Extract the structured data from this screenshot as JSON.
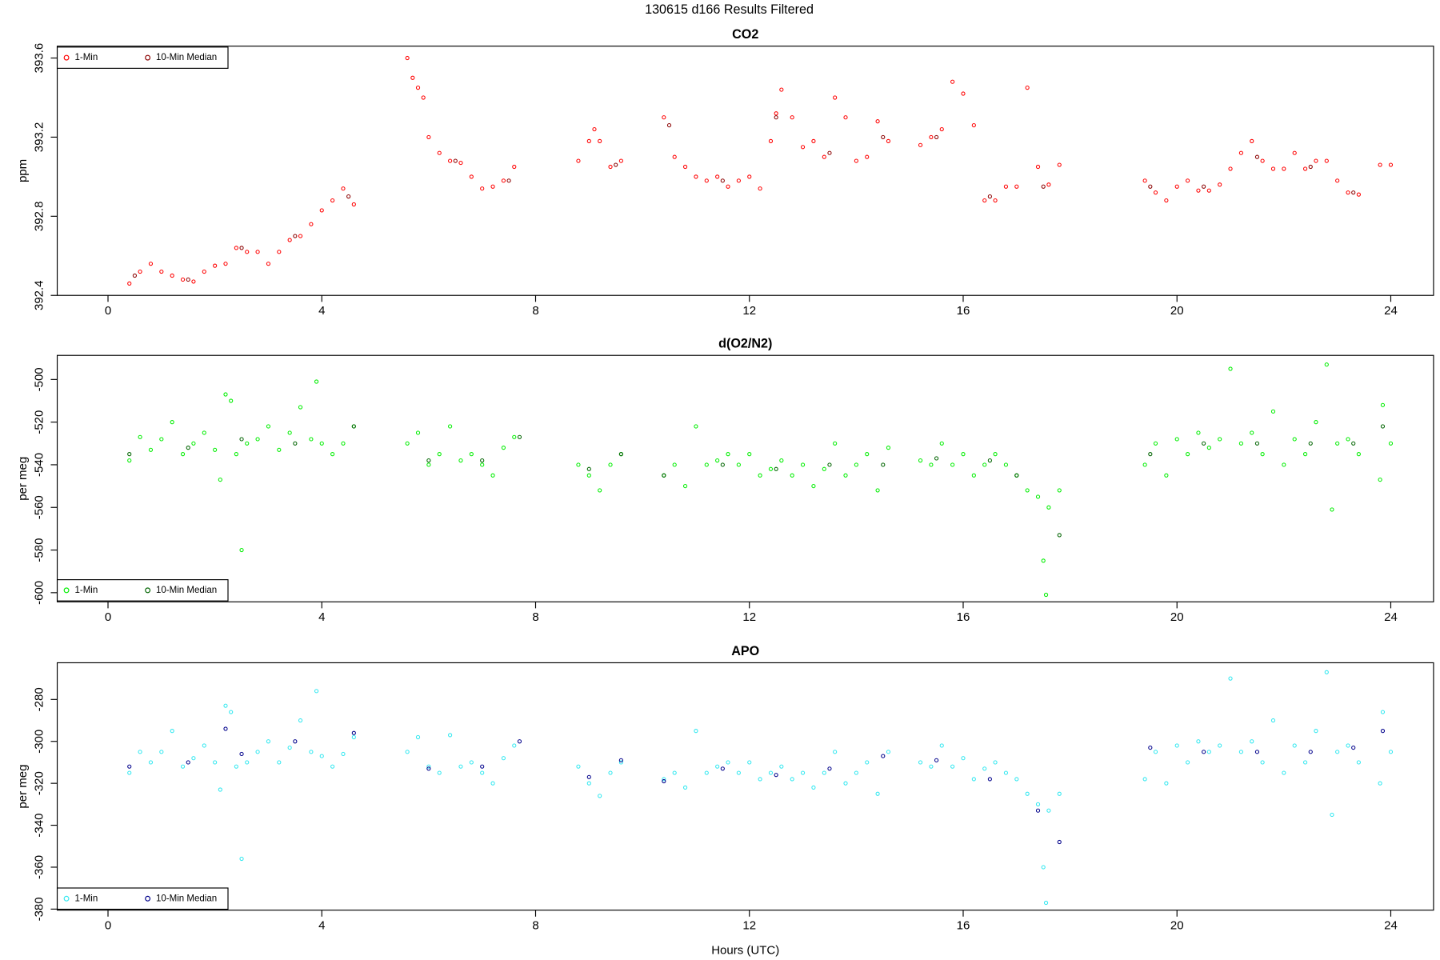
{
  "title": "130615   d166   Results Filtered",
  "chart_data": [
    {
      "type": "scatter",
      "title": "CO2",
      "ylabel": "ppm",
      "legend": "top-left",
      "xlim": [
        -0.95,
        24.8
      ],
      "xticks": [
        0,
        4,
        8,
        12,
        16,
        20,
        24
      ],
      "ylim": [
        392.4,
        393.66
      ],
      "yticks": [
        392.4,
        392.8,
        393.2,
        393.6
      ],
      "series": [
        {
          "name": "1-Min",
          "color": "#ff0000",
          "x": [
            0.4,
            0.6,
            0.8,
            1.0,
            1.2,
            1.4,
            1.6,
            1.8,
            2.0,
            2.2,
            2.4,
            2.6,
            2.8,
            3.0,
            3.2,
            3.4,
            3.6,
            3.8,
            4.0,
            4.2,
            4.4,
            4.6,
            5.6,
            5.7,
            5.8,
            5.9,
            6.0,
            6.2,
            6.4,
            6.6,
            6.8,
            7.0,
            7.2,
            7.4,
            7.6,
            8.8,
            9.0,
            9.1,
            9.2,
            9.4,
            9.6,
            10.4,
            10.6,
            10.8,
            11.0,
            11.2,
            11.4,
            11.6,
            11.8,
            12.0,
            12.2,
            12.4,
            12.5,
            12.6,
            12.8,
            13.0,
            13.2,
            13.4,
            13.6,
            13.8,
            14.0,
            14.2,
            14.4,
            14.6,
            15.2,
            15.4,
            15.6,
            15.8,
            16.0,
            16.2,
            16.4,
            16.6,
            16.8,
            17.0,
            17.2,
            17.4,
            17.6,
            17.8,
            19.4,
            19.6,
            19.8,
            20.0,
            20.2,
            20.4,
            20.6,
            20.8,
            21.0,
            21.2,
            21.4,
            21.6,
            21.8,
            22.0,
            22.2,
            22.4,
            22.6,
            22.8,
            23.0,
            23.2,
            23.4,
            23.8,
            24.0
          ],
          "values": [
            392.46,
            392.52,
            392.56,
            392.52,
            392.5,
            392.48,
            392.47,
            392.52,
            392.55,
            392.56,
            392.64,
            392.62,
            392.62,
            392.56,
            392.62,
            392.68,
            392.7,
            392.76,
            392.83,
            392.88,
            392.94,
            392.86,
            393.6,
            393.5,
            393.45,
            393.4,
            393.2,
            393.12,
            393.08,
            393.07,
            393.0,
            392.94,
            392.95,
            392.98,
            393.05,
            393.08,
            393.18,
            393.24,
            393.18,
            393.05,
            393.08,
            393.3,
            393.1,
            393.05,
            393.0,
            392.98,
            393.0,
            392.95,
            392.98,
            393.0,
            392.94,
            393.18,
            393.32,
            393.44,
            393.3,
            393.15,
            393.18,
            393.1,
            393.4,
            393.3,
            393.08,
            393.1,
            393.28,
            393.18,
            393.16,
            393.2,
            393.24,
            393.48,
            393.42,
            393.26,
            392.88,
            392.88,
            392.95,
            392.95,
            393.45,
            393.05,
            392.96,
            393.06,
            392.98,
            392.92,
            392.88,
            392.95,
            392.98,
            392.93,
            392.93,
            392.96,
            393.04,
            393.12,
            393.18,
            393.08,
            393.04,
            393.04,
            393.12,
            393.04,
            393.08,
            393.08,
            392.98,
            392.92,
            392.91,
            393.06,
            393.06
          ]
        },
        {
          "name": "10-Min Median",
          "color": "#8b0000",
          "x": [
            0.5,
            1.5,
            2.5,
            3.5,
            4.5,
            6.5,
            7.5,
            9.5,
            10.5,
            11.5,
            12.5,
            13.5,
            14.5,
            15.5,
            16.5,
            17.5,
            19.5,
            20.5,
            21.5,
            22.5,
            23.3
          ],
          "values": [
            392.5,
            392.48,
            392.64,
            392.7,
            392.9,
            393.08,
            392.98,
            393.06,
            393.26,
            392.98,
            393.3,
            393.12,
            393.2,
            393.2,
            392.9,
            392.95,
            392.95,
            392.95,
            393.1,
            393.05,
            392.92
          ]
        }
      ]
    },
    {
      "type": "scatter",
      "title": "d(O2/N2)",
      "ylabel": "per meg",
      "legend": "bottom-left",
      "xlim": [
        -0.95,
        24.8
      ],
      "xticks": [
        0,
        4,
        8,
        12,
        16,
        20,
        24
      ],
      "ylim": [
        -604.3,
        -488.7
      ],
      "yticks": [
        -600,
        -580,
        -560,
        -540,
        -520,
        -500
      ],
      "series": [
        {
          "name": "1-Min",
          "color": "#00ee00",
          "x": [
            0.4,
            0.6,
            0.8,
            1.0,
            1.2,
            1.4,
            1.6,
            1.8,
            2.0,
            2.1,
            2.2,
            2.3,
            2.4,
            2.5,
            2.6,
            2.8,
            3.0,
            3.2,
            3.4,
            3.6,
            3.8,
            3.9,
            4.0,
            4.2,
            4.4,
            4.6,
            5.6,
            5.8,
            6.0,
            6.2,
            6.4,
            6.6,
            6.8,
            7.0,
            7.2,
            7.4,
            7.6,
            8.8,
            9.0,
            9.2,
            9.4,
            9.6,
            10.4,
            10.6,
            10.8,
            11.0,
            11.2,
            11.4,
            11.6,
            11.8,
            12.0,
            12.2,
            12.4,
            12.6,
            12.8,
            13.0,
            13.2,
            13.4,
            13.6,
            13.8,
            14.0,
            14.2,
            14.4,
            14.6,
            15.2,
            15.4,
            15.6,
            15.8,
            16.0,
            16.2,
            16.4,
            16.6,
            16.8,
            17.0,
            17.2,
            17.4,
            17.5,
            17.55,
            17.6,
            17.8,
            19.4,
            19.6,
            19.8,
            20.0,
            20.2,
            20.4,
            20.6,
            20.8,
            21.0,
            21.2,
            21.4,
            21.6,
            21.8,
            22.0,
            22.2,
            22.4,
            22.6,
            22.8,
            22.9,
            23.0,
            23.2,
            23.4,
            23.8,
            23.85,
            24.0
          ],
          "values": [
            -538,
            -527,
            -533,
            -528,
            -520,
            -535,
            -530,
            -525,
            -533,
            -547,
            -507,
            -510,
            -535,
            -580,
            -530,
            -528,
            -522,
            -533,
            -525,
            -513,
            -528,
            -501,
            -530,
            -535,
            -530,
            -522,
            -530,
            -525,
            -540,
            -535,
            -522,
            -538,
            -535,
            -540,
            -545,
            -532,
            -527,
            -540,
            -545,
            -552,
            -540,
            -535,
            -545,
            -540,
            -550,
            -522,
            -540,
            -538,
            -535,
            -540,
            -535,
            -545,
            -542,
            -538,
            -545,
            -540,
            -550,
            -542,
            -530,
            -545,
            -540,
            -535,
            -552,
            -532,
            -538,
            -540,
            -530,
            -540,
            -535,
            -545,
            -540,
            -535,
            -540,
            -545,
            -552,
            -555,
            -585,
            -601,
            -560,
            -552,
            -540,
            -530,
            -545,
            -528,
            -535,
            -525,
            -532,
            -528,
            -495,
            -530,
            -525,
            -535,
            -515,
            -540,
            -528,
            -535,
            -520,
            -493,
            -561,
            -530,
            -528,
            -535,
            -547,
            -512,
            -530
          ]
        },
        {
          "name": "10-Min Median",
          "color": "#006400",
          "x": [
            0.4,
            1.5,
            2.5,
            3.5,
            4.6,
            6.0,
            7.0,
            7.7,
            9.0,
            9.6,
            10.4,
            11.5,
            12.5,
            13.5,
            14.5,
            15.5,
            16.5,
            17.0,
            17.8,
            19.5,
            20.5,
            21.5,
            22.5,
            23.3,
            23.85
          ],
          "values": [
            -535,
            -532,
            -528,
            -530,
            -522,
            -538,
            -538,
            -527,
            -542,
            -535,
            -545,
            -540,
            -542,
            -540,
            -540,
            -537,
            -538,
            -545,
            -573,
            -535,
            -530,
            -530,
            -530,
            -530,
            -522
          ]
        }
      ]
    },
    {
      "type": "scatter",
      "title": "APO",
      "ylabel": "per meg",
      "xlabel": "Hours (UTC)",
      "legend": "bottom-left",
      "xlim": [
        -0.95,
        24.8
      ],
      "xticks": [
        0,
        4,
        8,
        12,
        16,
        20,
        24
      ],
      "ylim": [
        -380.5,
        -262.5
      ],
      "yticks": [
        -380,
        -360,
        -340,
        -320,
        -300,
        -280
      ],
      "series": [
        {
          "name": "1-Min",
          "color": "#33e8f0",
          "x": [
            0.4,
            0.6,
            0.8,
            1.0,
            1.2,
            1.4,
            1.6,
            1.8,
            2.0,
            2.1,
            2.2,
            2.3,
            2.4,
            2.5,
            2.6,
            2.8,
            3.0,
            3.2,
            3.4,
            3.6,
            3.8,
            3.9,
            4.0,
            4.2,
            4.4,
            4.6,
            5.6,
            5.8,
            6.0,
            6.2,
            6.4,
            6.6,
            6.8,
            7.0,
            7.2,
            7.4,
            7.6,
            8.8,
            9.0,
            9.2,
            9.4,
            9.6,
            10.4,
            10.6,
            10.8,
            11.0,
            11.2,
            11.4,
            11.6,
            11.8,
            12.0,
            12.2,
            12.4,
            12.6,
            12.8,
            13.0,
            13.2,
            13.4,
            13.6,
            13.8,
            14.0,
            14.2,
            14.4,
            14.6,
            15.2,
            15.4,
            15.6,
            15.8,
            16.0,
            16.2,
            16.4,
            16.6,
            16.8,
            17.0,
            17.2,
            17.4,
            17.5,
            17.55,
            17.6,
            17.8,
            19.4,
            19.6,
            19.8,
            20.0,
            20.2,
            20.4,
            20.6,
            20.8,
            21.0,
            21.2,
            21.4,
            21.6,
            21.8,
            22.0,
            22.2,
            22.4,
            22.6,
            22.8,
            22.9,
            23.0,
            23.2,
            23.4,
            23.8,
            23.85,
            24.0
          ],
          "values": [
            -315,
            -305,
            -310,
            -305,
            -295,
            -312,
            -308,
            -302,
            -310,
            -323,
            -283,
            -286,
            -312,
            -356,
            -310,
            -305,
            -300,
            -310,
            -303,
            -290,
            -305,
            -276,
            -307,
            -312,
            -306,
            -298,
            -305,
            -298,
            -312,
            -315,
            -297,
            -312,
            -310,
            -315,
            -320,
            -308,
            -302,
            -312,
            -320,
            -326,
            -315,
            -310,
            -318,
            -315,
            -322,
            -295,
            -315,
            -312,
            -310,
            -315,
            -310,
            -318,
            -315,
            -312,
            -318,
            -315,
            -322,
            -315,
            -305,
            -320,
            -315,
            -310,
            -325,
            -305,
            -310,
            -312,
            -302,
            -312,
            -308,
            -318,
            -313,
            -310,
            -315,
            -318,
            -325,
            -330,
            -360,
            -377,
            -333,
            -325,
            -318,
            -305,
            -320,
            -302,
            -310,
            -300,
            -305,
            -302,
            -270,
            -305,
            -300,
            -310,
            -290,
            -315,
            -302,
            -310,
            -295,
            -267,
            -335,
            -305,
            -302,
            -310,
            -320,
            -286,
            -305
          ]
        },
        {
          "name": "10-Min Median",
          "color": "#00008b",
          "x": [
            0.4,
            1.5,
            2.2,
            2.5,
            3.5,
            4.6,
            6.0,
            7.0,
            7.7,
            9.0,
            9.6,
            10.4,
            11.5,
            12.5,
            13.5,
            14.5,
            15.5,
            16.5,
            17.4,
            17.8,
            19.5,
            20.5,
            21.5,
            22.5,
            23.3,
            23.85
          ],
          "values": [
            -312,
            -310,
            -294,
            -306,
            -300,
            -296,
            -313,
            -312,
            -300,
            -317,
            -309,
            -319,
            -313,
            -316,
            -313,
            -307,
            -309,
            -318,
            -333,
            -348,
            -303,
            -305,
            -305,
            -305,
            -303,
            -295
          ]
        }
      ]
    }
  ]
}
